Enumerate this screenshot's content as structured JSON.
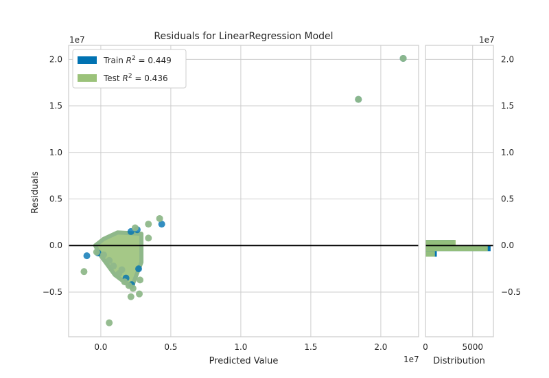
{
  "chart_data": {
    "type": "scatter",
    "title": "Residuals for LinearRegression Model",
    "xlabel": "Predicted Value",
    "ylabel": "Residuals",
    "x_offset_label": "1e7",
    "y_offset_label": "1e7",
    "xlim": [
      -2300000,
      22700000
    ],
    "ylim": [
      -9800000,
      21500000
    ],
    "xticks": [
      0.0,
      0.5,
      1.0,
      1.5,
      2.0
    ],
    "xtick_labels": [
      "0.0",
      "0.5",
      "1.0",
      "1.5",
      "2.0"
    ],
    "yticks": [
      -0.5,
      0.0,
      0.5,
      1.0,
      1.5,
      2.0
    ],
    "ytick_labels": [
      "−0.5",
      "0.0",
      "0.5",
      "1.0",
      "1.5",
      "2.0"
    ],
    "legend_position": "top-left",
    "series": [
      {
        "name": "Train",
        "r2_label": "0.449",
        "color": "#0072b2",
        "points": [
          [
            -1000000,
            -1100000
          ],
          [
            4350000,
            2300000
          ],
          [
            2600000,
            1700000
          ],
          [
            2150000,
            1500000
          ],
          [
            1800000,
            -3500000
          ],
          [
            2700000,
            -2500000
          ],
          [
            2200000,
            -4200000
          ],
          [
            -200000,
            -800000
          ],
          [
            21600000,
            20100000
          ],
          [
            18400000,
            15700000
          ]
        ]
      },
      {
        "name": "Test",
        "r2_label": "0.436",
        "color": "#9bc27a",
        "points": [
          [
            21600000,
            20100000
          ],
          [
            18400000,
            15700000
          ],
          [
            4200000,
            2900000
          ],
          [
            3400000,
            2300000
          ],
          [
            2450000,
            1900000
          ],
          [
            3400000,
            800000
          ],
          [
            -1200000,
            -2800000
          ],
          [
            600000,
            -8300000
          ],
          [
            2150000,
            -5500000
          ],
          [
            2750000,
            -5200000
          ],
          [
            2800000,
            -3700000
          ],
          [
            2000000,
            -4300000
          ],
          [
            2300000,
            -4600000
          ],
          [
            1700000,
            -3900000
          ],
          [
            1300000,
            -3000000
          ],
          [
            600000,
            -1600000
          ],
          [
            200000,
            -1000000
          ],
          [
            -300000,
            -700000
          ],
          [
            900000,
            -2200000
          ],
          [
            1500000,
            -2600000
          ]
        ]
      }
    ],
    "horizontal_line": {
      "y": 0,
      "color": "#000000"
    },
    "residual_blob": {
      "x_range": [
        -400000,
        2900000
      ],
      "y_range": [
        -4500000,
        1400000
      ],
      "color": "#9bc27a"
    },
    "histogram": {
      "xlabel": "Distribution",
      "xlim": [
        0,
        7200
      ],
      "xticks": [
        0,
        5000
      ],
      "xtick_labels": [
        "0",
        "5000"
      ],
      "bins": [
        {
          "y0": 0,
          "y1": 600000,
          "train": 3100,
          "test": 3200
        },
        {
          "y0": -600000,
          "y1": 0,
          "train": 6900,
          "test": 6600
        },
        {
          "y0": -1200000,
          "y1": -600000,
          "train": 1200,
          "test": 1000
        },
        {
          "y0": -1800000,
          "y1": -1200000,
          "train": 30,
          "test": 40
        }
      ]
    }
  }
}
